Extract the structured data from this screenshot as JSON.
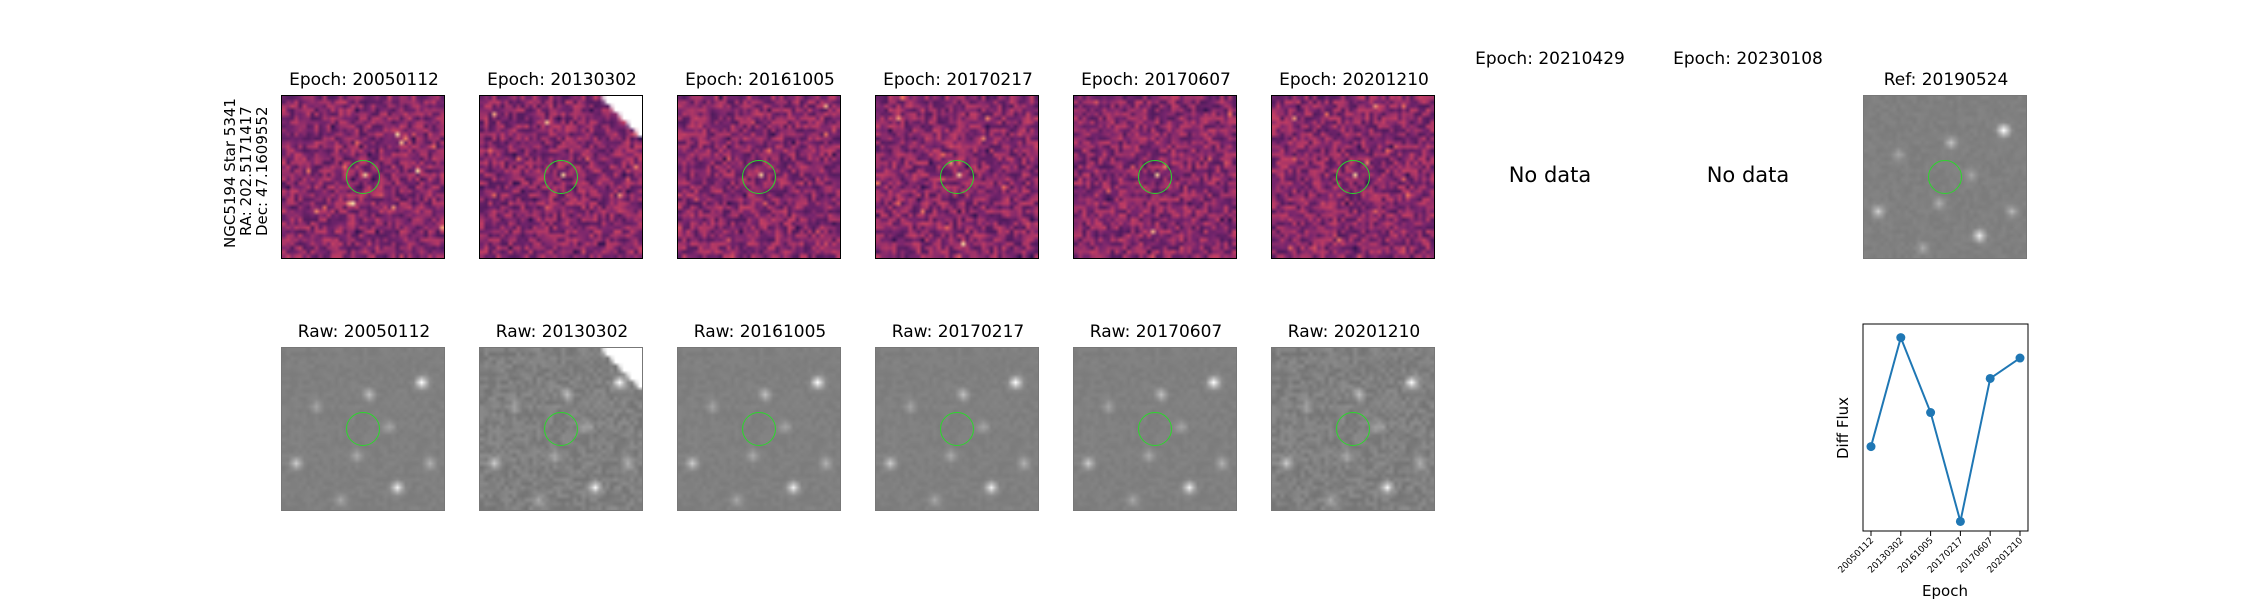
{
  "star": {
    "name_line": "NGC5194 Star 5341",
    "ra_line": "RA: 202.5171417",
    "dec_line": "Dec: 47.1609552"
  },
  "diff_panels": [
    {
      "title": "Epoch: 20050112",
      "has_data": true
    },
    {
      "title": "Epoch: 20130302",
      "has_data": true
    },
    {
      "title": "Epoch: 20161005",
      "has_data": true
    },
    {
      "title": "Epoch: 20170217",
      "has_data": true
    },
    {
      "title": "Epoch: 20170607",
      "has_data": true
    },
    {
      "title": "Epoch: 20201210",
      "has_data": true
    },
    {
      "title": "Epoch: 20210429",
      "has_data": false,
      "message": "No data"
    },
    {
      "title": "Epoch: 20230108",
      "has_data": false,
      "message": "No data"
    }
  ],
  "reference_panel": {
    "title": "Ref: 20190524"
  },
  "raw_panels": [
    {
      "title": "Raw: 20050112"
    },
    {
      "title": "Raw: 20130302"
    },
    {
      "title": "Raw: 20161005"
    },
    {
      "title": "Raw: 20170217"
    },
    {
      "title": "Raw: 20170607"
    },
    {
      "title": "Raw: 20201210"
    }
  ],
  "colors": {
    "aperture_ring": "#2bd82b",
    "line_series": "#1f77b4",
    "diff_cmap": "magma",
    "raw_cmap": "gray"
  },
  "chart_data": {
    "type": "line",
    "title": "",
    "xlabel": "Epoch",
    "ylabel": "Diff Flux",
    "x": [
      "20050112",
      "20130302",
      "20161005",
      "20170217",
      "20170607",
      "20201210"
    ],
    "series": [
      {
        "values": [
          0.2,
          1.0,
          0.45,
          -0.35,
          0.7,
          0.85
        ]
      }
    ],
    "ylim": [
      -0.42,
      1.1
    ],
    "y_ticks_shown": false,
    "grid": false,
    "legend": "none"
  }
}
